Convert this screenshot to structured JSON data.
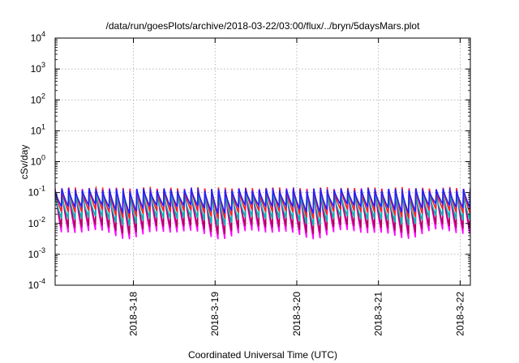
{
  "chart_data": {
    "type": "line",
    "title": "/data/run/goesPlots/archive/2018-03-22/03:00/flux/../bryn/5daysMars.plot",
    "xlabel": "Coordinated Universal Time (UTC)",
    "ylabel": "cSv/day",
    "yscale": "log",
    "ylim": [
      0.0001,
      10000
    ],
    "xlim": [
      "2018-03-17T01:00",
      "2018-03-22T03:00"
    ],
    "grid": true,
    "legend": "none",
    "y_ticks": [
      {
        "base": "10",
        "exp": "4"
      },
      {
        "base": "10",
        "exp": "3"
      },
      {
        "base": "10",
        "exp": "2"
      },
      {
        "base": "10",
        "exp": "1"
      },
      {
        "base": "10",
        "exp": "0"
      },
      {
        "base": "10",
        "exp": "-1"
      },
      {
        "base": "10",
        "exp": "-2"
      },
      {
        "base": "10",
        "exp": "-3"
      },
      {
        "base": "10",
        "exp": "-4"
      }
    ],
    "x_ticks": [
      "2018-3-18",
      "2018-3-19",
      "2018-3-20",
      "2018-3-21",
      "2018-3-22"
    ],
    "orbit_period_hours": 2.0,
    "series": [
      {
        "color": "#ff00ff",
        "peak": 0.12,
        "trough": 0.004
      },
      {
        "color": "#b0005a",
        "peak": 0.11,
        "trough": 0.006
      },
      {
        "color": "#00b5b5",
        "peak": 0.085,
        "trough": 0.012
      },
      {
        "color": "#ff2020",
        "peak": 0.13,
        "trough": 0.02
      },
      {
        "color": "#2020ff",
        "peak": 0.12,
        "trough": 0.03
      }
    ]
  }
}
